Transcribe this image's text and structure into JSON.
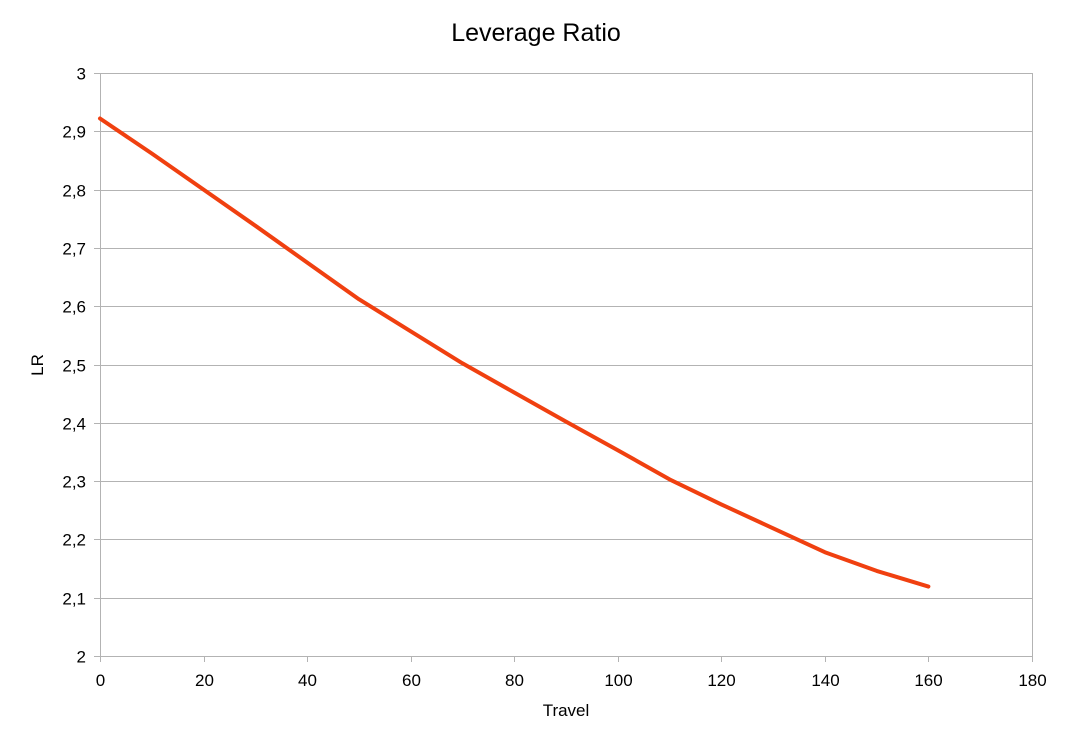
{
  "chart_data": {
    "type": "line",
    "title": "Leverage Ratio",
    "xlabel": "Travel",
    "ylabel": "LR",
    "xlim": [
      0,
      180
    ],
    "ylim": [
      2,
      3
    ],
    "x_ticks": [
      0,
      20,
      40,
      60,
      80,
      100,
      120,
      140,
      160,
      180
    ],
    "y_ticks": [
      2,
      2.1,
      2.2,
      2.3,
      2.4,
      2.5,
      2.6,
      2.7,
      2.8,
      2.9,
      3
    ],
    "y_tick_labels": [
      "2",
      "2,1",
      "2,2",
      "2,3",
      "2,4",
      "2,5",
      "2,6",
      "2,7",
      "2,8",
      "2,9",
      "3"
    ],
    "x_tick_labels": [
      "0",
      "20",
      "40",
      "60",
      "80",
      "100",
      "120",
      "140",
      "160",
      "180"
    ],
    "grid": true,
    "legend": "none",
    "series": [
      {
        "color": "#f04010",
        "x": [
          0,
          10,
          20,
          30,
          40,
          50,
          60,
          70,
          80,
          90,
          100,
          110,
          120,
          130,
          140,
          150,
          160
        ],
        "y": [
          2.922,
          2.862,
          2.8,
          2.738,
          2.675,
          2.612,
          2.557,
          2.502,
          2.452,
          2.402,
          2.353,
          2.303,
          2.26,
          2.219,
          2.178,
          2.146,
          2.119
        ]
      }
    ]
  }
}
